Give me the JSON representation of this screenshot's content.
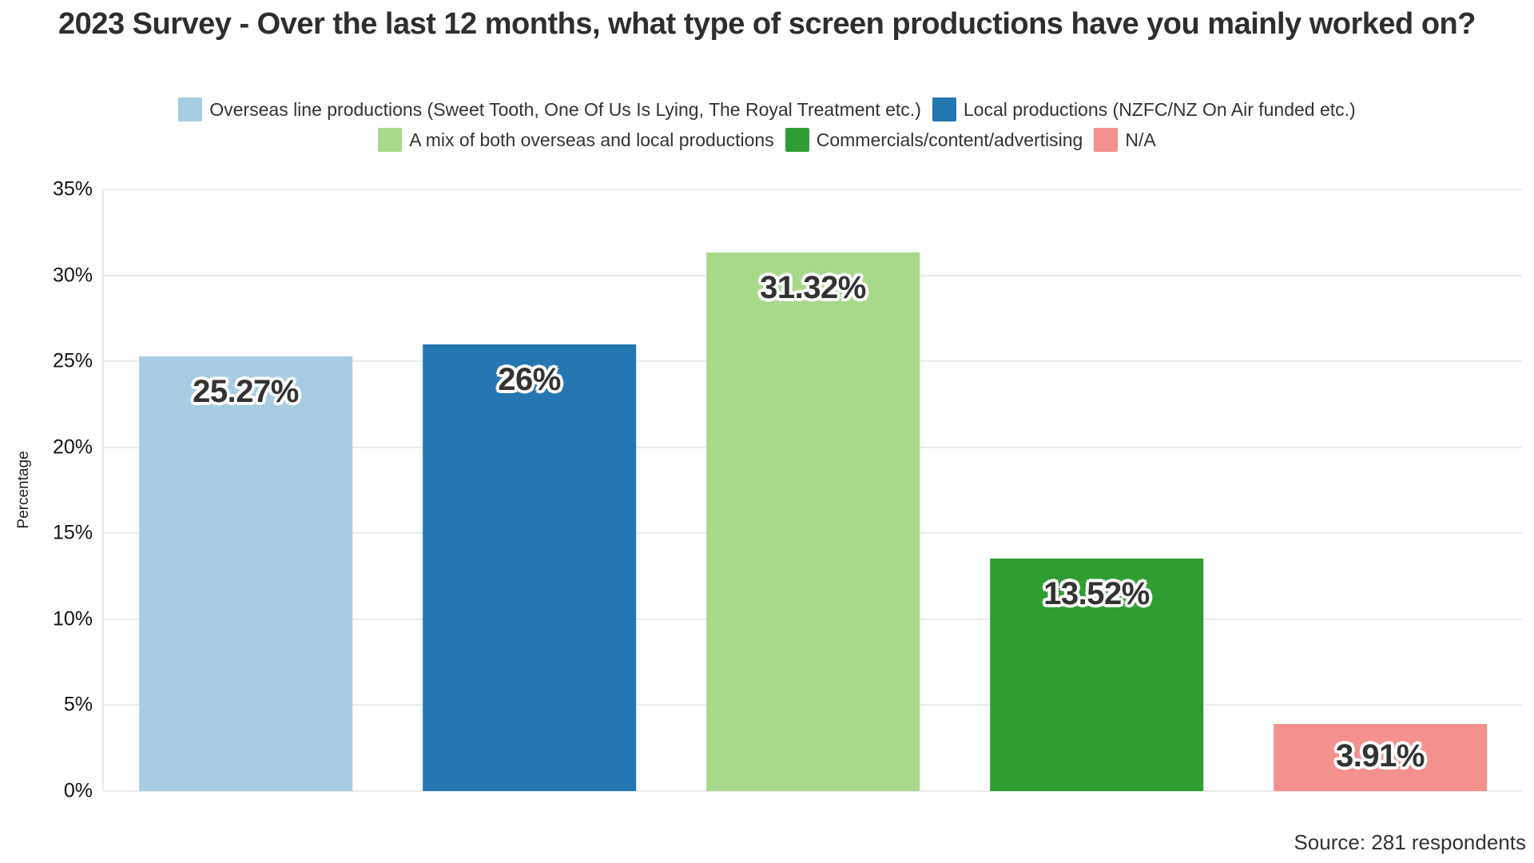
{
  "chart_data": {
    "type": "bar",
    "title": "2023 Survey - Over the last 12 months, what type of screen productions have you mainly worked on?",
    "ylabel": "Percentage",
    "ylim": [
      0,
      35
    ],
    "ytick_step": 5,
    "ytick_suffix": "%",
    "grid": true,
    "legend_position": "top",
    "categories": [
      "Overseas line productions (Sweet Tooth, One Of Us Is Lying, The Royal Treatment etc.)",
      "Local productions (NZFC/NZ On Air funded etc.)",
      "A mix of both overseas and local productions",
      "Commercials/content/advertising",
      "N/A"
    ],
    "values": [
      25.27,
      26,
      31.32,
      13.52,
      3.91
    ],
    "value_labels": [
      "25.27%",
      "26%",
      "31.32%",
      "13.52%",
      "3.91%"
    ],
    "colors": [
      "#a7cde2",
      "#2577b2",
      "#a8d98a",
      "#2f9e32",
      "#f4918e"
    ],
    "source_note": "Source: 281 respondents"
  }
}
